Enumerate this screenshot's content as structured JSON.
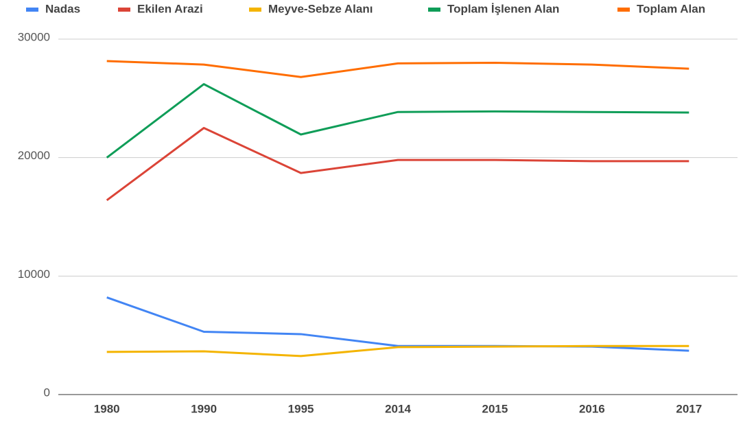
{
  "chart_data": {
    "type": "line",
    "categories": [
      "1980",
      "1990",
      "1995",
      "2014",
      "2015",
      "2016",
      "2017"
    ],
    "series": [
      {
        "name": "Nadas",
        "color": "#4285f4",
        "values": [
          8200,
          5300,
          5100,
          4100,
          4100,
          4050,
          3700
        ]
      },
      {
        "name": "Ekilen Arazi",
        "color": "#db4437",
        "values": [
          16400,
          22500,
          18700,
          19800,
          19800,
          19700,
          19700
        ]
      },
      {
        "name": "Meyve-Sebze Alanı",
        "color": "#f4b400",
        "values": [
          3600,
          3650,
          3250,
          4000,
          4050,
          4100,
          4100
        ]
      },
      {
        "name": "Toplam İşlenen Alan",
        "color": "#0f9d58",
        "values": [
          20000,
          26200,
          21950,
          23850,
          23900,
          23850,
          23800
        ]
      },
      {
        "name": "Toplam Alan",
        "color": "#ff6d00",
        "values": [
          28150,
          27850,
          26800,
          27950,
          28000,
          27850,
          27500
        ]
      }
    ],
    "ylim": [
      0,
      30000
    ],
    "yticks": [
      0,
      10000,
      20000,
      30000
    ],
    "grid": true,
    "legend": "top"
  }
}
